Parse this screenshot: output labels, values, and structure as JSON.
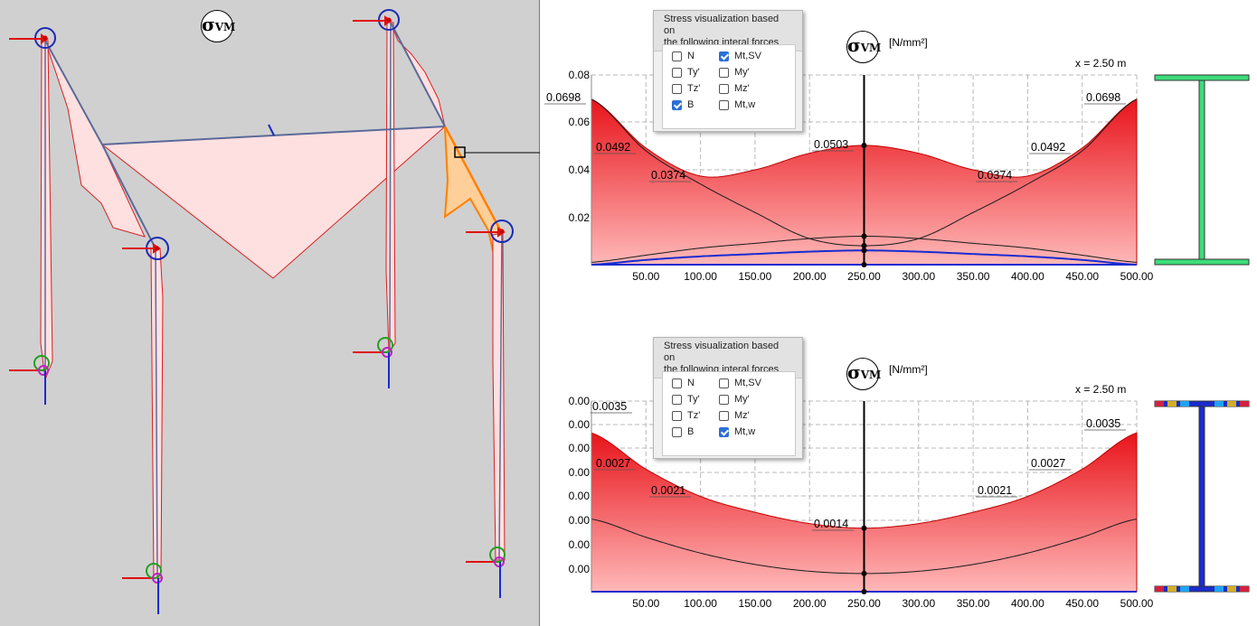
{
  "model_view": {
    "symbol": "σ",
    "symbol_sub": "VM"
  },
  "panels": [
    {
      "dialog": {
        "title_line1": "Stress visualization based on",
        "title_line2": "the following interal forces",
        "options": [
          {
            "label": "N",
            "checked": false
          },
          {
            "label": "Mt,SV",
            "checked": true
          },
          {
            "label": "Ty'",
            "checked": false
          },
          {
            "label": "My'",
            "checked": false
          },
          {
            "label": "Tz'",
            "checked": false
          },
          {
            "label": "Mz'",
            "checked": false
          },
          {
            "label": "B",
            "checked": true
          },
          {
            "label": "Mt,w",
            "checked": false
          }
        ]
      },
      "symbol": "σ",
      "symbol_sub": "VM",
      "unit": "[N/mm²]",
      "position_label": "x = 2.50 m",
      "value_labels": [
        "0.0698",
        "0.0492",
        "0.0374",
        "0.0503",
        "0.0374",
        "0.0492",
        "0.0698"
      ],
      "colors": {
        "fill": "#e8141b",
        "outline": "#c00000",
        "section_web": "#3ddc7a"
      }
    },
    {
      "dialog": {
        "title_line1": "Stress visualization based on",
        "title_line2": "the following interal forces",
        "options": [
          {
            "label": "N",
            "checked": false
          },
          {
            "label": "Mt,SV",
            "checked": false
          },
          {
            "label": "Ty'",
            "checked": false
          },
          {
            "label": "My'",
            "checked": false
          },
          {
            "label": "Tz'",
            "checked": false
          },
          {
            "label": "Mz'",
            "checked": false
          },
          {
            "label": "B",
            "checked": false
          },
          {
            "label": "Mt,w",
            "checked": true
          }
        ]
      },
      "symbol": "σ",
      "symbol_sub": "VM",
      "unit": "[N/mm²]",
      "position_label": "x = 2.50 m",
      "value_labels": [
        "0.0035",
        "0.0027",
        "0.0021",
        "0.0014",
        "0.0021",
        "0.0027",
        "0.0035"
      ],
      "colors": {
        "fill": "#e8141b",
        "outline": "#c00000",
        "section_web": "#1a2bd0"
      }
    }
  ],
  "chart_data": [
    {
      "type": "area",
      "x": [
        0,
        50,
        100,
        150,
        200,
        250,
        300,
        350,
        400,
        450,
        500
      ],
      "x_tick_labels": [
        "50.00",
        "100.00",
        "150.00",
        "200.00",
        "250.00",
        "300.00",
        "350.00",
        "400.00",
        "450.00",
        "500.00"
      ],
      "y_tick_labels": [
        "0.08",
        "0.06",
        "0.04",
        "0.02"
      ],
      "ylim": [
        0,
        0.08
      ],
      "xlim": [
        0,
        500
      ],
      "series": [
        {
          "values": [
            0.0698,
            0.0492,
            0.0374,
            0.04,
            0.047,
            0.0503,
            0.047,
            0.04,
            0.0374,
            0.0492,
            0.0698
          ]
        },
        {
          "values": [
            0.0698,
            0.048,
            0.034,
            0.022,
            0.011,
            0.008,
            0.011,
            0.022,
            0.034,
            0.048,
            0.0698
          ]
        },
        {
          "values": [
            0.001,
            0.004,
            0.007,
            0.009,
            0.011,
            0.012,
            0.011,
            0.009,
            0.007,
            0.004,
            0.001
          ]
        },
        {
          "values": [
            0.0,
            0.002,
            0.0035,
            0.0045,
            0.0055,
            0.006,
            0.0055,
            0.0045,
            0.0035,
            0.002,
            0.0
          ]
        }
      ],
      "grid": true
    },
    {
      "type": "area",
      "x": [
        0,
        50,
        100,
        150,
        200,
        250,
        300,
        350,
        400,
        450,
        500
      ],
      "x_tick_labels": [
        "50.00",
        "100.00",
        "150.00",
        "200.00",
        "250.00",
        "300.00",
        "350.00",
        "400.00",
        "450.00",
        "500.00"
      ],
      "y_tick_labels": [
        "0.00",
        "0.00",
        "0.00",
        "0.00",
        "0.00",
        "0.00",
        "0.00",
        "0.00"
      ],
      "ylim": [
        0,
        0.0042
      ],
      "xlim": [
        0,
        500
      ],
      "series": [
        {
          "values": [
            0.0035,
            0.0027,
            0.0021,
            0.00175,
            0.0015,
            0.0014,
            0.0015,
            0.00175,
            0.0021,
            0.0027,
            0.0035
          ]
        },
        {
          "values": [
            0.0016,
            0.0012,
            0.00085,
            0.0006,
            0.00045,
            0.0004,
            0.00045,
            0.0006,
            0.00085,
            0.0012,
            0.0016
          ]
        }
      ],
      "grid": true
    }
  ]
}
